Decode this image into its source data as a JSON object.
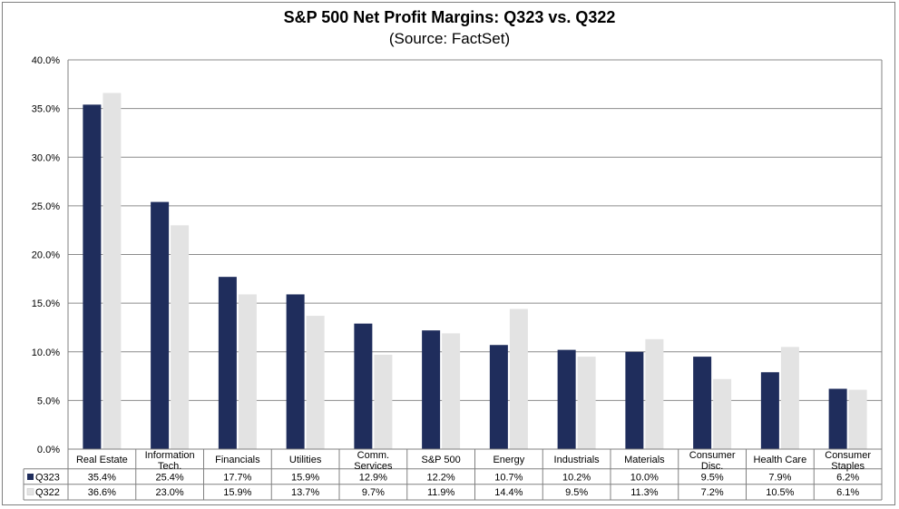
{
  "chart_data": {
    "type": "bar",
    "title": "S&P 500 Net Profit Margins: Q323 vs. Q322",
    "subtitle": "(Source: FactSet)",
    "categories": [
      [
        "Real Estate"
      ],
      [
        "Information",
        "Tech."
      ],
      [
        "Financials"
      ],
      [
        "Utilities"
      ],
      [
        "Comm.",
        "Services"
      ],
      [
        "S&P 500"
      ],
      [
        "Energy"
      ],
      [
        "Industrials"
      ],
      [
        "Materials"
      ],
      [
        "Consumer",
        "Disc."
      ],
      [
        "Health Care"
      ],
      [
        "Consumer",
        "Staples"
      ]
    ],
    "series": [
      {
        "name": "Q323",
        "color": "#1f2d5c",
        "values": [
          35.4,
          25.4,
          17.7,
          15.9,
          12.9,
          12.2,
          10.7,
          10.2,
          10.0,
          9.5,
          7.9,
          6.2
        ],
        "labels": [
          "35.4%",
          "25.4%",
          "17.7%",
          "15.9%",
          "12.9%",
          "12.2%",
          "10.7%",
          "10.2%",
          "10.0%",
          "9.5%",
          "7.9%",
          "6.2%"
        ]
      },
      {
        "name": "Q322",
        "color": "#e3e3e3",
        "values": [
          36.6,
          23.0,
          15.9,
          13.7,
          9.7,
          11.9,
          14.4,
          9.5,
          11.3,
          7.2,
          10.5,
          6.1
        ],
        "labels": [
          "36.6%",
          "23.0%",
          "15.9%",
          "13.7%",
          "9.7%",
          "11.9%",
          "14.4%",
          "9.5%",
          "11.3%",
          "7.2%",
          "10.5%",
          "6.1%"
        ]
      }
    ],
    "yticks": [
      "0.0%",
      "5.0%",
      "10.0%",
      "15.0%",
      "20.0%",
      "25.0%",
      "30.0%",
      "35.0%",
      "40.0%"
    ],
    "ylim": [
      0,
      40
    ],
    "grid": true,
    "legend": "data-table"
  }
}
